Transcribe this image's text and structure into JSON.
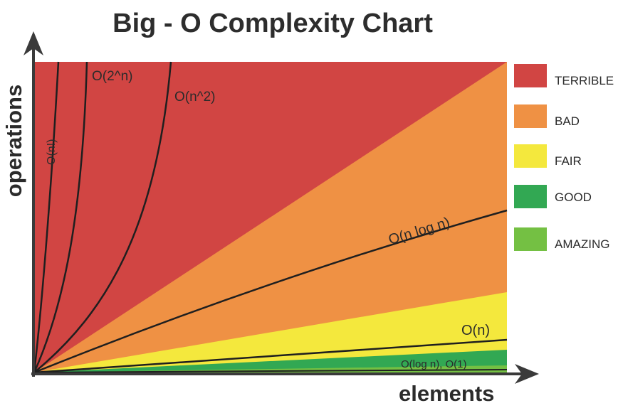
{
  "title": "Big - O  Complexity Chart",
  "chart_data": {
    "type": "area",
    "title": "Big - O  Complexity Chart",
    "xlabel": "elements",
    "ylabel": "operations",
    "regions": [
      {
        "name": "TERRIBLE",
        "color": "#d14543"
      },
      {
        "name": "BAD",
        "color": "#ef9144"
      },
      {
        "name": "FAIR",
        "color": "#f4e83d"
      },
      {
        "name": "GOOD",
        "color": "#32a853"
      },
      {
        "name": "AMAZING",
        "color": "#74c043"
      }
    ],
    "series": [
      {
        "name": "O(n!)"
      },
      {
        "name": "O(2^n)"
      },
      {
        "name": "O(n^2)"
      },
      {
        "name": "O(n log n)"
      },
      {
        "name": "O(n)"
      },
      {
        "name": "O(log n), O(1)"
      }
    ],
    "legend_position": "right"
  },
  "legend": [
    {
      "label": "TERRIBLE",
      "color": "#d14543"
    },
    {
      "label": "BAD",
      "color": "#ef9144"
    },
    {
      "label": "FAIR",
      "color": "#f4e83d"
    },
    {
      "label": "GOOD",
      "color": "#32a853"
    },
    {
      "label": "AMAZING",
      "color": "#74c043"
    }
  ]
}
